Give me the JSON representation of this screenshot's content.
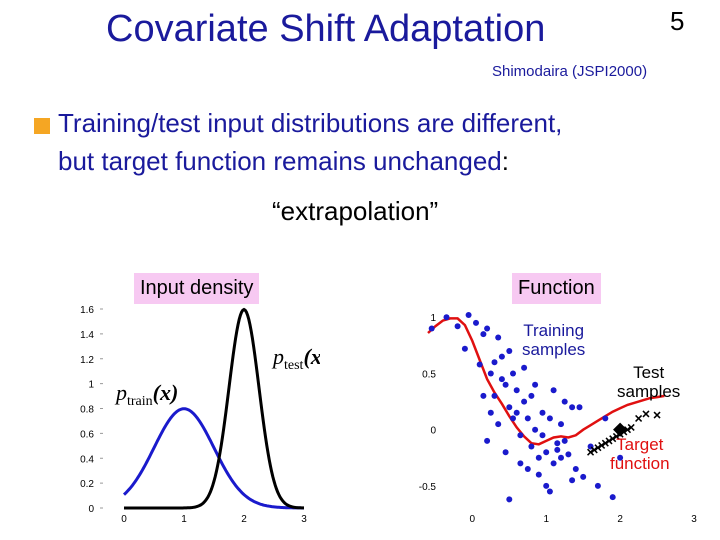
{
  "slide": {
    "title": "Covariate Shift Adaptation",
    "number": "5",
    "reference": "Shimodaira (JSPI2000)",
    "bullet": {
      "line1": "Training/test input distributions are different,",
      "line2_main": "but target function remains unchanged",
      "line2_colon": ":",
      "quote": "“extrapolation”"
    },
    "panel_labels": {
      "left": "Input density",
      "right": "Function"
    },
    "annotations": {
      "training_samples": [
        "Training",
        "samples"
      ],
      "test_samples": [
        "Test",
        "samples"
      ],
      "target_function": [
        "Target",
        "function"
      ]
    },
    "math_labels": {
      "p_test": "p",
      "p_test_sub": "test",
      "p_train": "p",
      "p_train_sub": "train",
      "arg": "(x)"
    }
  },
  "colors": {
    "title": "#1a1a9c",
    "bullet_marker": "#f5a623",
    "label_bg": "#f7c9f2",
    "train_curve": "#1a1acc",
    "test_curve": "#000000",
    "target_curve": "#e01010",
    "samples": "#1a1acc"
  },
  "chart_data": [
    {
      "type": "line",
      "title": "",
      "x_ticks": [
        "0",
        "1",
        "2",
        "3"
      ],
      "y_ticks": [
        "0",
        "0.2",
        "0.4",
        "0.6",
        "0.8",
        "1",
        "1.2",
        "1.4",
        "1.6"
      ],
      "xlim": [
        0,
        3
      ],
      "ylim": [
        0,
        1.6
      ],
      "series": [
        {
          "name": "p_train(x)",
          "distribution": "normal",
          "mean": 1.0,
          "std": 0.5
        },
        {
          "name": "p_test(x)",
          "distribution": "normal",
          "mean": 2.0,
          "std": 0.25
        }
      ]
    },
    {
      "type": "scatter",
      "title": "",
      "x_ticks": [
        "0",
        "1",
        "2",
        "3"
      ],
      "y_ticks": [
        "-0.5",
        "0",
        "0.5",
        "1"
      ],
      "xlim": [
        -0.6,
        3
      ],
      "ylim": [
        -0.75,
        1.1
      ],
      "target_function": {
        "x": [
          -0.6,
          -0.5,
          -0.4,
          -0.3,
          -0.2,
          -0.1,
          0.0,
          0.1,
          0.2,
          0.3,
          0.4,
          0.5,
          0.6,
          0.7,
          0.8,
          0.9,
          1.0,
          1.1,
          1.2,
          1.3,
          1.4,
          1.5,
          1.6,
          1.7,
          1.8,
          1.9,
          2.0,
          2.1,
          2.2,
          2.3,
          2.4,
          2.5,
          2.6
        ],
        "y": [
          0.86,
          0.92,
          0.97,
          0.99,
          0.99,
          0.93,
          0.79,
          0.62,
          0.45,
          0.33,
          0.23,
          0.12,
          0.02,
          -0.06,
          -0.12,
          -0.13,
          -0.1,
          -0.07,
          -0.06,
          -0.07,
          -0.05,
          0.0,
          0.04,
          0.08,
          0.12,
          0.16,
          0.19,
          0.22,
          0.24,
          0.26,
          0.28,
          0.29,
          0.3
        ]
      },
      "training_samples": {
        "x": [
          -0.55,
          -0.35,
          -0.2,
          -0.1,
          -0.05,
          0.05,
          0.1,
          0.15,
          0.2,
          0.25,
          0.3,
          0.35,
          0.4,
          0.45,
          0.5,
          0.55,
          0.6,
          0.65,
          0.7,
          0.75,
          0.8,
          0.85,
          0.9,
          0.95,
          1.0,
          1.05,
          1.1,
          1.15,
          1.2,
          1.25,
          1.3,
          1.35,
          1.4,
          1.5,
          1.6,
          1.7,
          1.8,
          1.9,
          2.0,
          0.2,
          0.3,
          0.4,
          0.5,
          0.6,
          0.7,
          0.8,
          0.9,
          1.0,
          1.1,
          1.2,
          0.25,
          0.45,
          0.65,
          0.85,
          1.05,
          1.25,
          1.45,
          0.35,
          0.55,
          0.75,
          0.95,
          1.15,
          1.35,
          0.15,
          0.5
        ],
        "y": [
          0.9,
          1.0,
          0.92,
          0.72,
          1.02,
          0.95,
          0.58,
          0.85,
          0.9,
          0.5,
          0.3,
          0.82,
          0.65,
          0.4,
          0.2,
          0.5,
          0.15,
          -0.05,
          0.25,
          0.1,
          -0.15,
          0.0,
          -0.25,
          -0.05,
          -0.2,
          0.1,
          -0.3,
          -0.18,
          0.05,
          -0.1,
          -0.22,
          0.2,
          -0.35,
          -0.42,
          -0.15,
          -0.5,
          0.1,
          -0.6,
          -0.25,
          -0.1,
          0.6,
          0.45,
          0.7,
          0.35,
          0.55,
          0.3,
          -0.4,
          -0.5,
          0.35,
          -0.25,
          0.15,
          -0.2,
          -0.3,
          0.4,
          -0.55,
          0.25,
          0.2,
          0.05,
          0.1,
          -0.35,
          0.15,
          -0.12,
          -0.45,
          0.3,
          -0.62
        ]
      },
      "test_samples": {
        "x": [
          1.6,
          1.65,
          1.7,
          1.75,
          1.8,
          1.85,
          1.9,
          1.95,
          2.0,
          2.05,
          2.1,
          2.15,
          2.25,
          2.35,
          2.5
        ],
        "y": [
          -0.2,
          -0.18,
          -0.16,
          -0.14,
          -0.12,
          -0.1,
          -0.08,
          -0.06,
          -0.04,
          -0.02,
          0.0,
          0.02,
          0.1,
          0.14,
          0.13
        ]
      },
      "large_marker": {
        "x": 2.0,
        "y": 0.0
      }
    }
  ]
}
